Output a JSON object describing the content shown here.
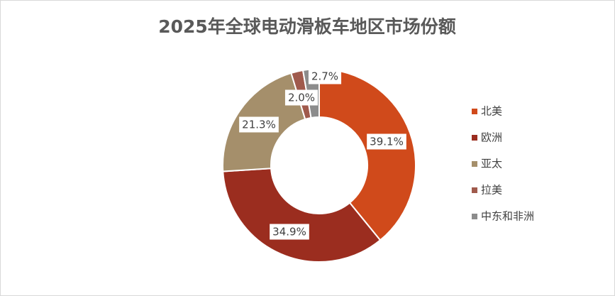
{
  "chart_data": {
    "type": "donut",
    "title": "2025年全球电动滑板车地区市场份额",
    "categories": [
      "北美",
      "欧洲",
      "亚太",
      "拉美",
      "中东和非洲"
    ],
    "values": [
      39.1,
      34.9,
      21.3,
      2.0,
      2.7
    ],
    "value_labels": [
      "39.1%",
      "34.9%",
      "21.3%",
      "2.0%",
      "2.7%"
    ],
    "colors": [
      "#d04a1b",
      "#9b2d1f",
      "#a58f6b",
      "#a05a4c",
      "#8c8c8c"
    ],
    "legend": "right"
  }
}
